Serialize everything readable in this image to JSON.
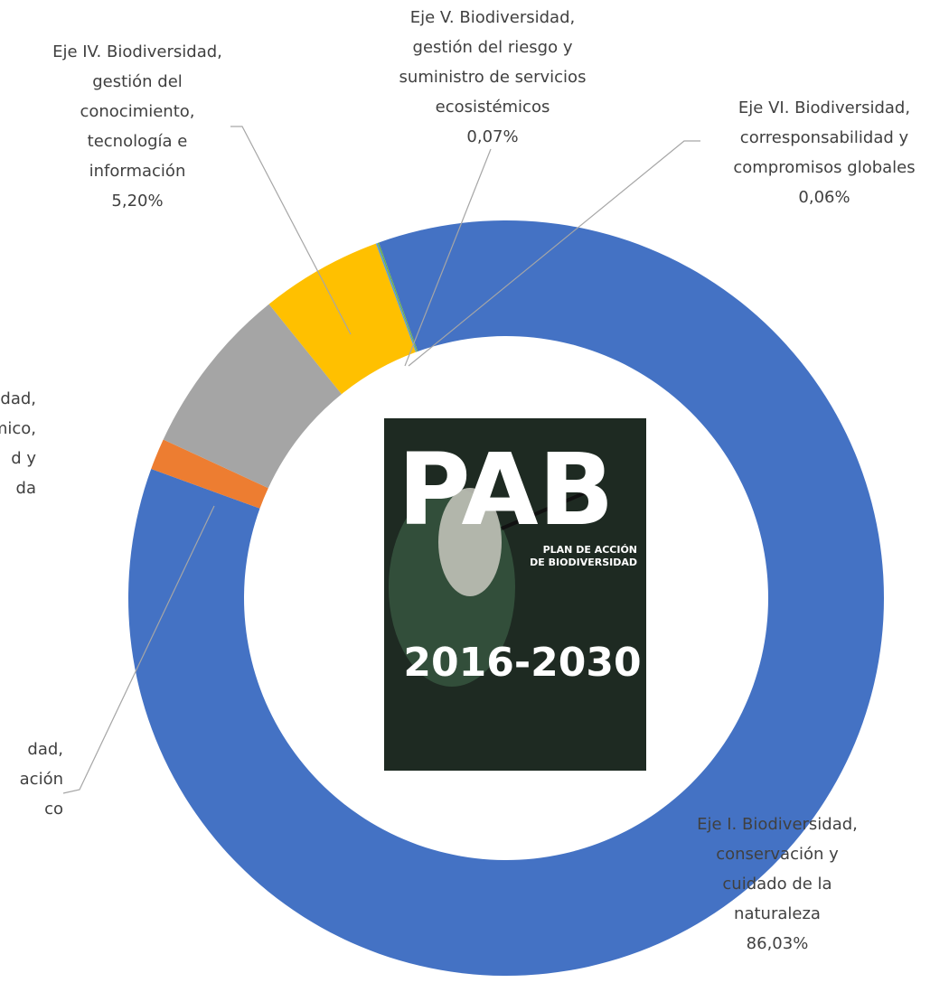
{
  "chart_data": {
    "type": "donut",
    "labels": [
      [
        "Eje I. Biodiversidad,",
        "conservación y",
        "cuidado de la",
        "naturaleza"
      ],
      [
        "dad,",
        "ación",
        "co"
      ],
      [
        "idad,",
        "omico,",
        "d y",
        "da"
      ],
      [
        "Eje IV. Biodiversidad,",
        "gestión del",
        "conocimiento,",
        "tecnología e",
        "información"
      ],
      [
        "Eje V. Biodiversidad,",
        "gestión del riesgo y",
        "suministro de servicios",
        "ecosistémicos"
      ],
      [
        "Eje VI. Biodiversidad,",
        "corresponsabilidad y",
        "compromisos globales"
      ]
    ],
    "values": [
      86.03,
      1.34,
      7.3,
      5.2,
      0.07,
      0.06
    ],
    "value_labels": [
      "86,03%",
      null,
      null,
      "5,20%",
      "0,07%",
      "0,06%"
    ],
    "colors": [
      "#4472c4",
      "#ed7d31",
      "#a5a5a5",
      "#ffc000",
      "#5b9bd5",
      "#70ad47"
    ],
    "image": {
      "logo": "PAB",
      "subtitle": [
        "PLAN DE ACCIÓN",
        "DE BIODIVERSIDAD"
      ],
      "years": "2016-2030"
    }
  }
}
